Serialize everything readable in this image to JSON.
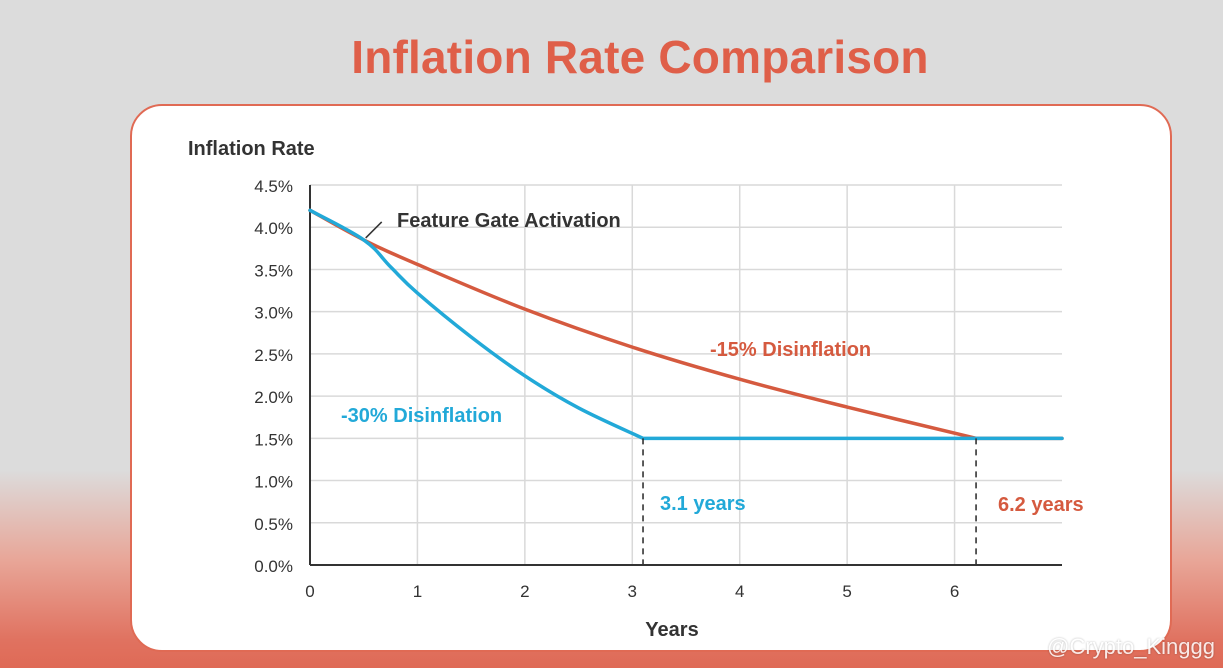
{
  "page": {
    "title": "Inflation Rate Comparison",
    "watermark": "@Crypto_Kinggg"
  },
  "colors": {
    "title": "#df5f49",
    "series_15": "#d55a3f",
    "series_30": "#22a9d8",
    "grid": "#d9d9d9",
    "axis": "#333333"
  },
  "chart_data": {
    "type": "line",
    "title": "Inflation Rate Comparison",
    "xlabel": "Years",
    "ylabel": "Inflation Rate",
    "xlim": [
      0,
      7
    ],
    "ylim": [
      0,
      4.5
    ],
    "xticks": [
      0,
      1,
      2,
      3,
      4,
      5,
      6
    ],
    "xtick_labels": [
      "0",
      "1",
      "2",
      "3",
      "4",
      "5",
      "6"
    ],
    "yticks": [
      0,
      0.5,
      1.0,
      1.5,
      2.0,
      2.5,
      3.0,
      3.5,
      4.0,
      4.5
    ],
    "ytick_labels": [
      "0.0%",
      "0.5%",
      "1.0%",
      "1.5%",
      "2.0%",
      "2.5%",
      "3.0%",
      "3.5%",
      "4.0%",
      "4.5%"
    ],
    "grid": true,
    "series": [
      {
        "name": "-30% Disinflation",
        "color": "#22a9d8",
        "x": [
          0,
          0.5,
          0.75,
          1.0,
          1.5,
          2.0,
          2.5,
          3.1,
          4,
          5,
          6,
          7
        ],
        "y": [
          4.2,
          3.85,
          3.53,
          3.22,
          2.7,
          2.24,
          1.86,
          1.5,
          1.5,
          1.5,
          1.5,
          1.5
        ]
      },
      {
        "name": "-15% Disinflation",
        "color": "#d55a3f",
        "x": [
          0,
          0.5,
          1,
          2,
          3,
          4,
          5,
          6.2,
          7
        ],
        "y": [
          4.2,
          3.85,
          3.56,
          3.03,
          2.58,
          2.2,
          1.87,
          1.5,
          1.5
        ]
      }
    ],
    "annotations": [
      {
        "text": "Feature Gate Activation",
        "x": 0.5,
        "y": 3.85
      },
      {
        "text": "-15% Disinflation",
        "series": "-15% Disinflation"
      },
      {
        "text": "-30% Disinflation",
        "series": "-30% Disinflation"
      },
      {
        "text": "3.1 years",
        "x": 3.1,
        "series": "-30% Disinflation"
      },
      {
        "text": "6.2 years",
        "x": 6.2,
        "series": "-15% Disinflation"
      }
    ]
  }
}
